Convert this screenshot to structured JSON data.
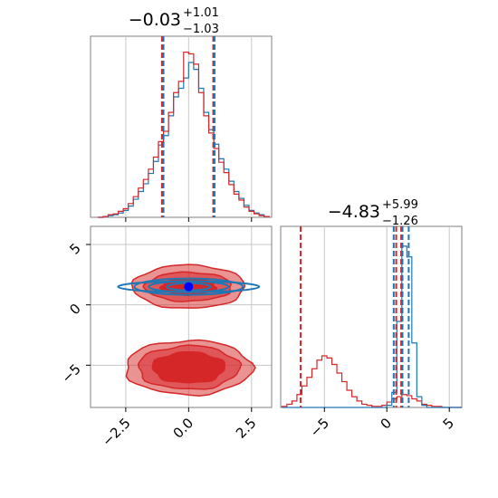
{
  "chart_data": [
    {
      "type": "histogram",
      "panel": "marginal-x",
      "title": {
        "value": "−0.03",
        "upper": "+1.01",
        "lower": "−1.03"
      },
      "xlim": [
        -3.9,
        3.3
      ],
      "bin_edges": [
        -3.6,
        -3.4,
        -3.2,
        -3.0,
        -2.8,
        -2.6,
        -2.4,
        -2.2,
        -2.0,
        -1.8,
        -1.6,
        -1.4,
        -1.2,
        -1.0,
        -0.8,
        -0.6,
        -0.4,
        -0.2,
        0.0,
        0.2,
        0.4,
        0.6,
        0.8,
        1.0,
        1.2,
        1.4,
        1.6,
        1.8,
        2.0,
        2.2,
        2.4,
        2.6,
        2.8,
        3.0,
        3.2
      ],
      "series": [
        {
          "color": "#1f77b4",
          "values": [
            0,
            1,
            2,
            3,
            5,
            8,
            13,
            21,
            30,
            39,
            51,
            65,
            84,
            95,
            118,
            140,
            150,
            162,
            180,
            172,
            150,
            122,
            102,
            85,
            68,
            56,
            42,
            30,
            22,
            14,
            8,
            5,
            3,
            1
          ]
        },
        {
          "color": "#d62728",
          "values": [
            0,
            1,
            3,
            4,
            7,
            10,
            16,
            24,
            34,
            44,
            56,
            70,
            88,
            100,
            122,
            145,
            158,
            192,
            190,
            178,
            145,
            118,
            98,
            80,
            64,
            52,
            38,
            27,
            20,
            12,
            7,
            4,
            2,
            1
          ]
        }
      ],
      "ymax": 200,
      "quantile_lines": {
        "red": [
          -1.06,
          0.98
        ],
        "blue": [
          -1.0,
          1.03
        ]
      },
      "xticks": []
    },
    {
      "type": "contour",
      "panel": "joint",
      "xlim": [
        -3.9,
        3.3
      ],
      "ylim": [
        -8.5,
        6.5
      ],
      "xticks": [
        "−2.5",
        "0.0",
        "2.5"
      ],
      "xtick_values": [
        -2.5,
        0.0,
        2.5
      ],
      "yticks": [
        "−5",
        "0",
        "5"
      ],
      "ytick_values": [
        -5,
        0,
        5
      ],
      "modes": [
        {
          "color": "#1f77b4",
          "center": [
            0.0,
            1.5
          ],
          "note": "blue"
        },
        {
          "color": "#d62728",
          "center": [
            0.0,
            1.5
          ],
          "note": "red upper"
        },
        {
          "color": "#d62728",
          "center": [
            0.0,
            -5.2
          ],
          "note": "red lower"
        }
      ],
      "truth_point": {
        "x": 0.0,
        "y": 1.5,
        "color": "#0000ff"
      }
    },
    {
      "type": "histogram",
      "panel": "marginal-y",
      "title": {
        "value": "−4.83",
        "upper": "+5.99",
        "lower": "−1.26"
      },
      "xlim": [
        -8.5,
        6.0
      ],
      "xticks": [
        "−5",
        "0",
        "5"
      ],
      "xtick_values": [
        -5,
        0,
        5
      ],
      "bin_edges": [
        -8.4,
        -8.0,
        -7.6,
        -7.2,
        -6.8,
        -6.4,
        -6.0,
        -5.6,
        -5.2,
        -4.8,
        -4.4,
        -4.0,
        -3.6,
        -3.2,
        -2.8,
        -2.4,
        -2.0,
        -1.6,
        -1.2,
        -0.8,
        -0.4,
        0.0,
        0.4,
        0.8,
        1.2,
        1.6,
        2.0,
        2.4,
        2.8,
        3.2,
        3.6,
        4.0,
        4.4,
        4.8,
        5.2,
        5.6,
        6.0
      ],
      "series": [
        {
          "color": "#d62728",
          "values": [
            1,
            3,
            6,
            12,
            20,
            28,
            36,
            44,
            48,
            46,
            40,
            32,
            24,
            16,
            10,
            6,
            3,
            2,
            1,
            1,
            2,
            5,
            8,
            10,
            12,
            11,
            8,
            6,
            3,
            2,
            1,
            1,
            0,
            0,
            0,
            0
          ]
        },
        {
          "color": "#1f77b4",
          "values": [
            0,
            0,
            0,
            0,
            0,
            0,
            0,
            0,
            0,
            0,
            0,
            0,
            0,
            0,
            0,
            0,
            0,
            0,
            0,
            0,
            0,
            2,
            14,
            80,
            150,
            140,
            60,
            10,
            2,
            0,
            0,
            0,
            0,
            0,
            0,
            0
          ]
        }
      ],
      "ymax": 160,
      "quantile_lines": {
        "red": [
          -6.9,
          0.75,
          1.15
        ],
        "blue": [
          0.55,
          1.25,
          1.75
        ]
      }
    }
  ]
}
